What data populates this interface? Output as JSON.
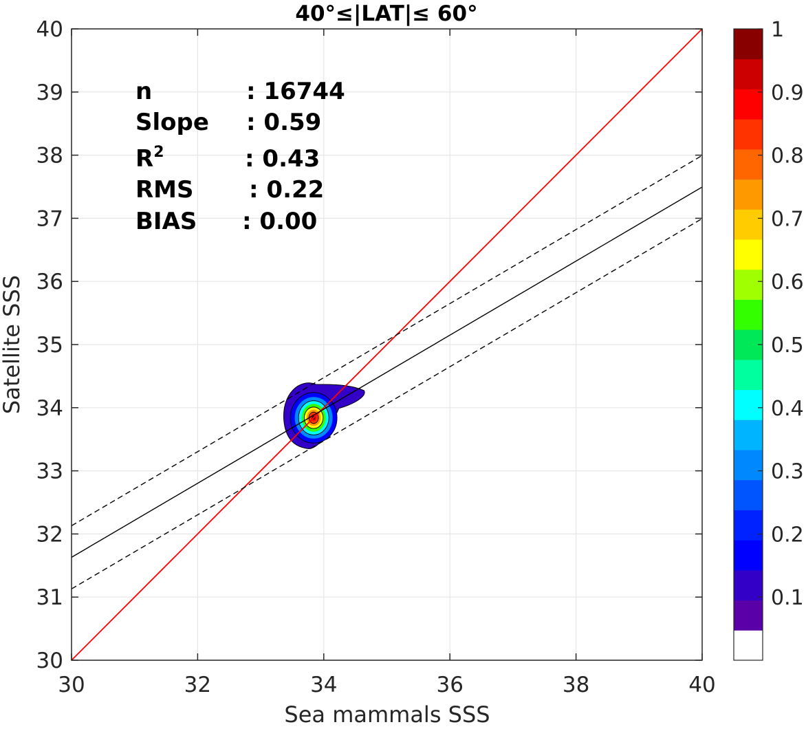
{
  "chart_data": {
    "type": "contour-scatter",
    "title": "40°≤|LAT|≤ 60°",
    "xlabel": "Sea mammals SSS",
    "ylabel": "Satellite SSS",
    "xlim": [
      30,
      40
    ],
    "ylim": [
      30,
      40
    ],
    "xticks": [
      30,
      32,
      34,
      36,
      38,
      40
    ],
    "yticks": [
      30,
      31,
      32,
      33,
      34,
      35,
      36,
      37,
      38,
      39,
      40
    ],
    "grid": true,
    "stats": [
      {
        "key": "n",
        "value": ": 16744"
      },
      {
        "key": "Slope",
        "value": ": 0.59"
      },
      {
        "key": "R",
        "sup": "2",
        "value": ": 0.43"
      },
      {
        "key": "RMS",
        "value": ": 0.22"
      },
      {
        "key": "BIAS",
        "value": ": 0.00"
      }
    ],
    "lines": {
      "identity": {
        "slope": 1,
        "intercept": 0,
        "color": "#ff0000"
      },
      "fit": {
        "slope": 0.5865,
        "intercept": 14.035,
        "color": "#000000"
      },
      "fit_band_offset": 0.5
    },
    "density_peak": {
      "x": 33.82,
      "y": 33.82
    },
    "colorbar": {
      "ticks": [
        0.1,
        0.2,
        0.3,
        0.4,
        0.5,
        0.6,
        0.7,
        0.8,
        0.9,
        1
      ],
      "tick_labels": [
        "0.1",
        "0.2",
        "0.3",
        "0.4",
        "0.5",
        "0.6",
        "0.7",
        "0.8",
        "0.9",
        "1"
      ],
      "levels": 20,
      "colors": [
        "#ffffff",
        "#5a00a8",
        "#3300c8",
        "#0000ff",
        "#0022ff",
        "#0055ff",
        "#0088ff",
        "#00b4ff",
        "#00ffff",
        "#00ff9f",
        "#00e858",
        "#33ff00",
        "#a0ff00",
        "#ffff00",
        "#ffcc00",
        "#ff9900",
        "#ff6600",
        "#ff3300",
        "#ff0000",
        "#cc0000",
        "#880000"
      ]
    }
  }
}
